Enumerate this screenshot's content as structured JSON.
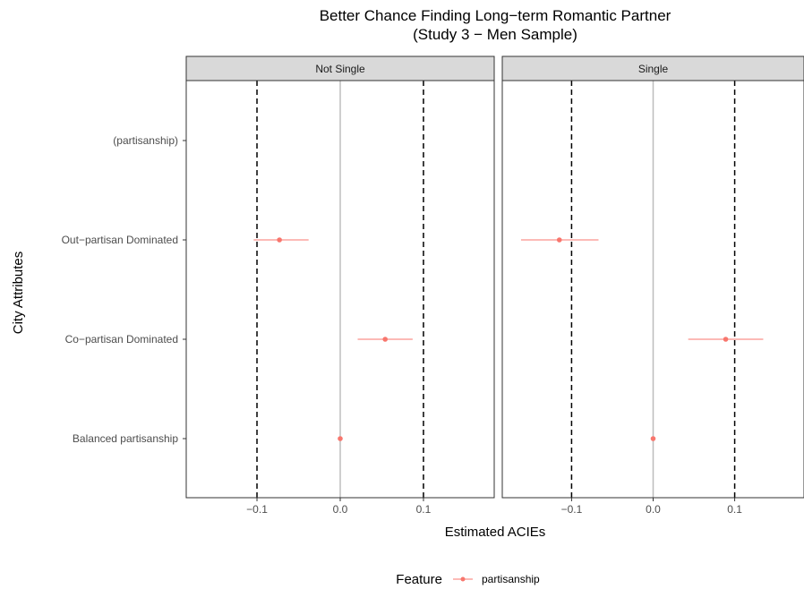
{
  "chart_data": {
    "type": "scatter",
    "title_line1": "Better Chance Finding Long−term Romantic Partner",
    "title_line2": "(Study 3 − Men Sample)",
    "xlabel": "Estimated ACIEs",
    "ylabel": "City Attributes",
    "xlim": [
      -0.185,
      0.185
    ],
    "x_ticks": [
      {
        "value": -0.1,
        "label": "−0.1"
      },
      {
        "value": 0.0,
        "label": "0.0"
      },
      {
        "value": 0.1,
        "label": "0.1"
      }
    ],
    "reference_lines": {
      "solid": 0.0,
      "dashed": [
        -0.1,
        0.1
      ]
    },
    "categories": [
      "(partisanship)",
      "Out−partisan Dominated",
      "Co−partisan Dominated",
      "Balanced partisanship"
    ],
    "legend": {
      "title": "Feature",
      "label": "partisanship",
      "position": "bottom"
    },
    "series_color": "#F8766D",
    "panels": [
      {
        "name": "Not Single",
        "points": [
          {
            "category": "Out−partisan Dominated",
            "estimate": -0.073,
            "low": -0.104,
            "high": -0.038
          },
          {
            "category": "Co−partisan Dominated",
            "estimate": 0.054,
            "low": 0.021,
            "high": 0.087
          },
          {
            "category": "Balanced partisanship",
            "estimate": 0.0,
            "low": 0.0,
            "high": 0.0
          }
        ]
      },
      {
        "name": "Single",
        "points": [
          {
            "category": "Out−partisan Dominated",
            "estimate": -0.115,
            "low": -0.162,
            "high": -0.067
          },
          {
            "category": "Co−partisan Dominated",
            "estimate": 0.089,
            "low": 0.043,
            "high": 0.135
          },
          {
            "category": "Balanced partisanship",
            "estimate": 0.0,
            "low": 0.0,
            "high": 0.0
          }
        ]
      }
    ]
  }
}
